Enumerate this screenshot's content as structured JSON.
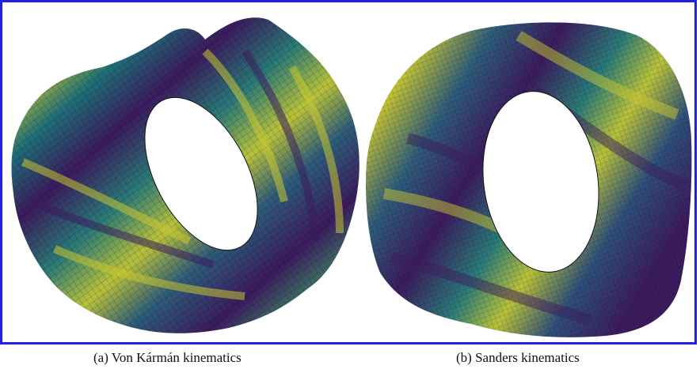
{
  "figure": {
    "frame_color": "#1f1fe6",
    "panels": [
      {
        "id": "a",
        "caption": "(a) Von Kármán kinematics",
        "surface": "cylindrical-shell-buckled",
        "colormap": "viridis"
      },
      {
        "id": "b",
        "caption": "(b) Sanders kinematics",
        "surface": "cylindrical-shell-buckled",
        "colormap": "viridis"
      }
    ],
    "colormap_stops": [
      "#3b1b5e",
      "#2e5c7a",
      "#1f8a78",
      "#4fae5a",
      "#c8c632"
    ]
  }
}
